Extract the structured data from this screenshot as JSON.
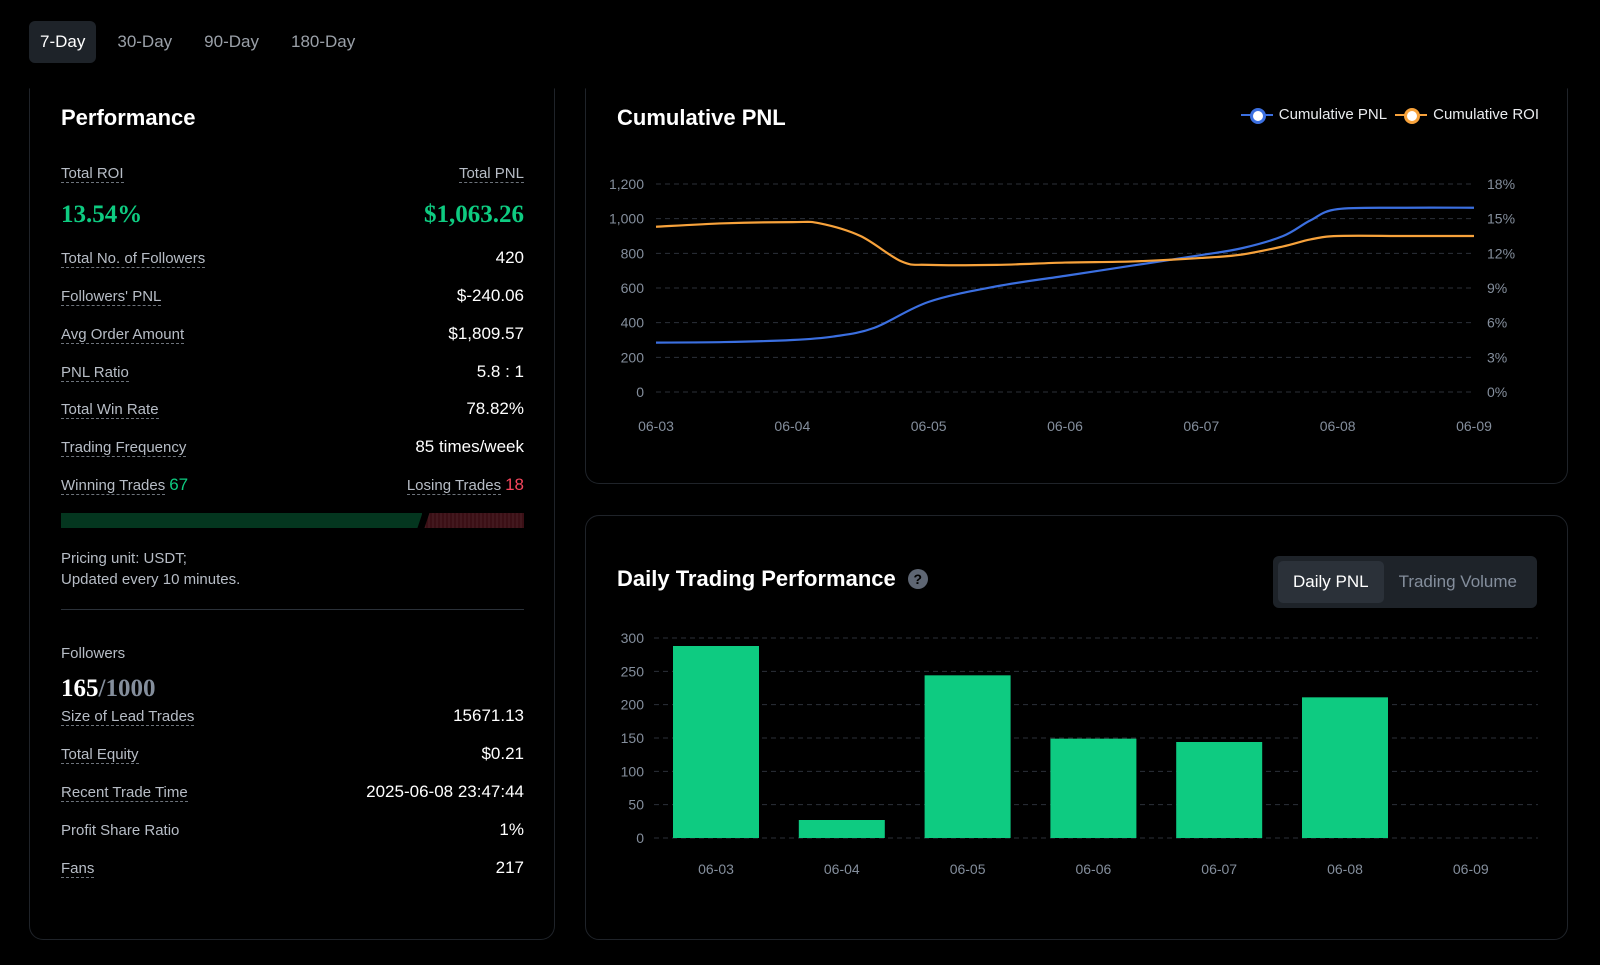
{
  "tabs": [
    {
      "label": "7-Day",
      "active": true
    },
    {
      "label": "30-Day",
      "active": false
    },
    {
      "label": "90-Day",
      "active": false
    },
    {
      "label": "180-Day",
      "active": false
    }
  ],
  "performance": {
    "title": "Performance",
    "total_roi_label": "Total ROI",
    "total_pnl_label": "Total PNL",
    "total_roi": "13.54%",
    "total_pnl": "$1,063.26",
    "rows": [
      {
        "label": "Total No. of Followers",
        "value": "420"
      },
      {
        "label": "Followers' PNL",
        "value": "$-240.06"
      },
      {
        "label": "Avg Order Amount",
        "value": "$1,809.57"
      },
      {
        "label": "PNL Ratio",
        "value": "5.8 : 1"
      },
      {
        "label": "Total Win Rate",
        "value": "78.82%"
      },
      {
        "label": "Trading Frequency",
        "value": "85 times/week"
      }
    ],
    "winning_label": "Winning Trades",
    "winning_count": "67",
    "losing_label": "Losing Trades",
    "losing_count": "18",
    "win_fraction": 0.7882,
    "note_line1": "Pricing unit: USDT;",
    "note_line2": "Updated every 10 minutes.",
    "followers_label": "Followers",
    "followers_current": "165",
    "followers_max": "/1000",
    "rows2": [
      {
        "label": "Size of Lead Trades",
        "value": "15671.13"
      },
      {
        "label": "Total Equity",
        "value": "$0.21"
      },
      {
        "label": "Recent Trade Time",
        "value": "2025-06-08 23:47:44"
      },
      {
        "label": "Profit Share Ratio",
        "value": "1%"
      },
      {
        "label": "Fans",
        "value": "217"
      }
    ]
  },
  "cumulative": {
    "title": "Cumulative PNL",
    "legend": [
      {
        "name": "Cumulative PNL",
        "color": "#3b6fe0"
      },
      {
        "name": "Cumulative ROI",
        "color": "#f7a23b"
      }
    ]
  },
  "daily": {
    "title": "Daily Trading Performance",
    "help": "?",
    "toggle": [
      {
        "label": "Daily PNL",
        "active": true
      },
      {
        "label": "Trading Volume",
        "active": false
      }
    ]
  },
  "chart_data": [
    {
      "type": "line",
      "title": "Cumulative PNL",
      "categories": [
        "06-03",
        "06-04",
        "06-05",
        "06-06",
        "06-07",
        "06-08",
        "06-09"
      ],
      "y_ticks": [
        "0",
        "200",
        "400",
        "600",
        "800",
        "1,000",
        "1,200"
      ],
      "y2_ticks": [
        "0%",
        "3%",
        "6%",
        "9%",
        "12%",
        "15%",
        "18%"
      ],
      "ylim": [
        0,
        1200
      ],
      "y2lim": [
        0,
        18
      ],
      "grid": true,
      "legend_position": "top-right",
      "series": [
        {
          "name": "Cumulative PNL",
          "axis": "left",
          "color": "#3b6fe0",
          "x": [
            0,
            0.5,
            1,
            1.3,
            1.6,
            2,
            2.5,
            3,
            3.5,
            4,
            4.3,
            4.6,
            4.8,
            5,
            5.5,
            6
          ],
          "values": [
            285,
            288,
            300,
            320,
            370,
            520,
            610,
            670,
            730,
            790,
            830,
            900,
            990,
            1055,
            1063,
            1063
          ]
        },
        {
          "name": "Cumulative ROI",
          "axis": "right",
          "color": "#f7a23b",
          "x": [
            0,
            0.5,
            1,
            1.2,
            1.5,
            1.8,
            2,
            2.5,
            3,
            3.5,
            4,
            4.3,
            4.6,
            4.8,
            5,
            5.5,
            6
          ],
          "values": [
            14.3,
            14.6,
            14.7,
            14.6,
            13.5,
            11.3,
            11.0,
            11.0,
            11.2,
            11.3,
            11.6,
            11.9,
            12.6,
            13.2,
            13.5,
            13.5,
            13.5
          ]
        }
      ]
    },
    {
      "type": "bar",
      "title": "Daily Trading Performance",
      "categories": [
        "06-03",
        "06-04",
        "06-05",
        "06-06",
        "06-07",
        "06-08",
        "06-09"
      ],
      "values": [
        288,
        27,
        244,
        149,
        144,
        211,
        0
      ],
      "y_ticks": [
        "0",
        "50",
        "100",
        "150",
        "200",
        "250",
        "300"
      ],
      "ylim": [
        0,
        300
      ],
      "grid": true,
      "color": "#0ecb81"
    }
  ]
}
